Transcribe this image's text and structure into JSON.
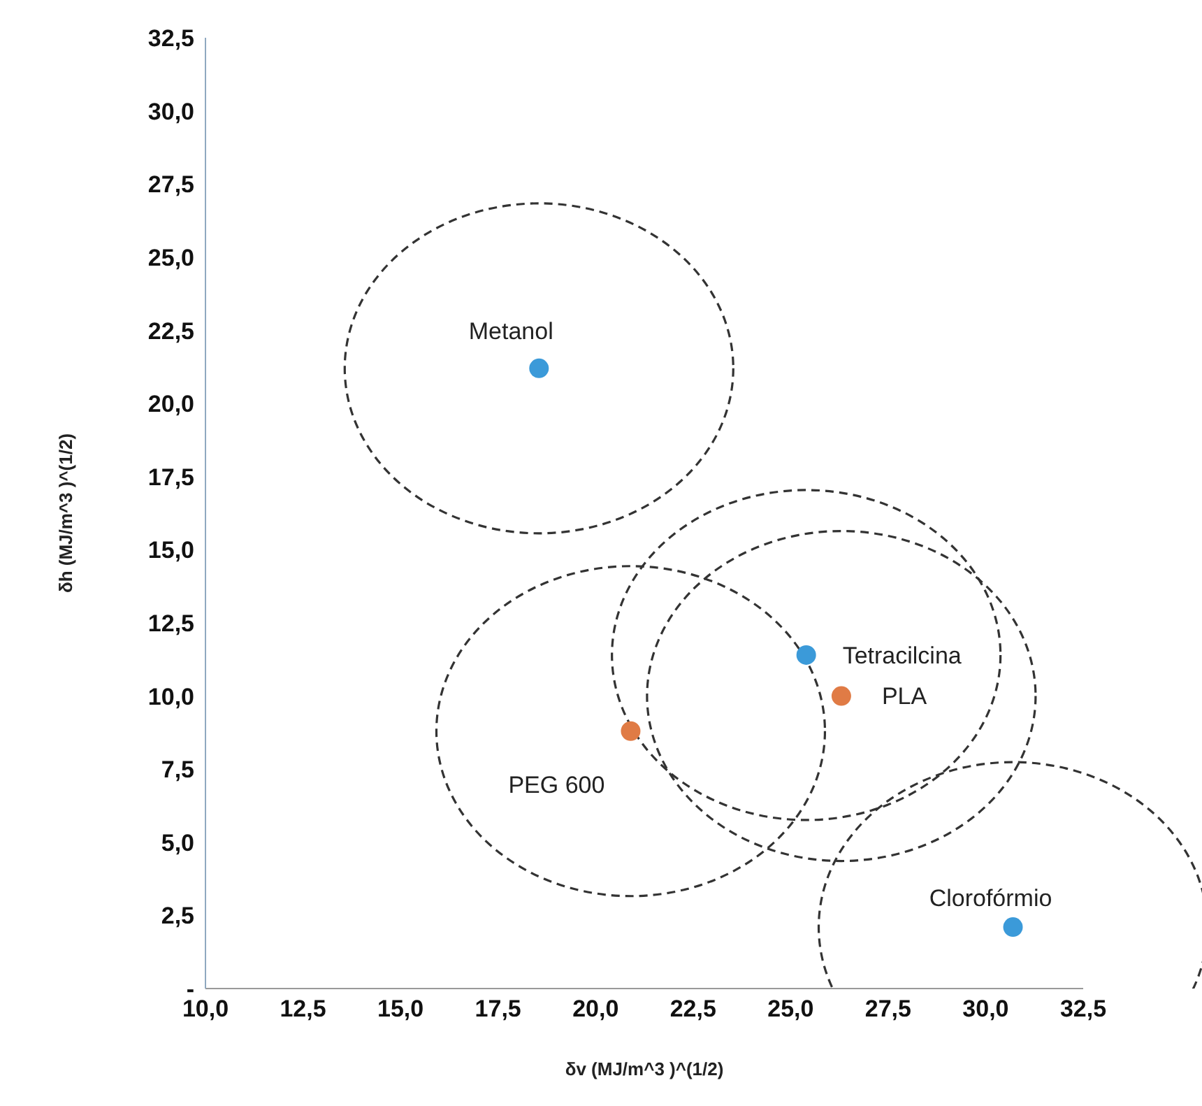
{
  "chart_data": {
    "type": "scatter",
    "xlabel": "δv (MJ/m^3 )^(1/2)",
    "ylabel": "δh (MJ/m^3 )^(1/2)",
    "xlim": [
      10,
      32.5
    ],
    "ylim": [
      0,
      32.5
    ],
    "xticks": [
      {
        "value": 10,
        "label": "10,0"
      },
      {
        "value": 12.5,
        "label": "12,5"
      },
      {
        "value": 15,
        "label": "15,0"
      },
      {
        "value": 17.5,
        "label": "17,5"
      },
      {
        "value": 20,
        "label": "20,0"
      },
      {
        "value": 22.5,
        "label": "22,5"
      },
      {
        "value": 25,
        "label": "25,0"
      },
      {
        "value": 27.5,
        "label": "27,5"
      },
      {
        "value": 30,
        "label": "30,0"
      },
      {
        "value": 32.5,
        "label": "32,5"
      }
    ],
    "yticks": [
      {
        "value": 0,
        "label": "-"
      },
      {
        "value": 2.5,
        "label": "2,5"
      },
      {
        "value": 5,
        "label": "5,0"
      },
      {
        "value": 7.5,
        "label": "7,5"
      },
      {
        "value": 10,
        "label": "10,0"
      },
      {
        "value": 12.5,
        "label": "12,5"
      },
      {
        "value": 15,
        "label": "15,0"
      },
      {
        "value": 17.5,
        "label": "17,5"
      },
      {
        "value": 20,
        "label": "20,0"
      },
      {
        "value": 22.5,
        "label": "22,5"
      },
      {
        "value": 25,
        "label": "25,0"
      },
      {
        "value": 27.5,
        "label": "27,5"
      },
      {
        "value": 30,
        "label": "30,0"
      },
      {
        "value": 32.5,
        "label": "32,5"
      }
    ],
    "marker": "circle",
    "series": [
      {
        "type": "scatter",
        "color": "#3b9ad9",
        "x": [
          18.55,
          25.4,
          30.7
        ],
        "values": [
          21.2,
          11.4,
          2.1
        ]
      },
      {
        "type": "scatter",
        "color": "#e07b45",
        "x": [
          26.3,
          20.9
        ],
        "values": [
          10.0,
          8.8
        ]
      }
    ],
    "annotations": [
      {
        "text": "Metanol",
        "x": 18.55,
        "y": 21.2
      },
      {
        "text": "Tetracilcina",
        "x": 25.4,
        "y": 11.4
      },
      {
        "text": "PLA",
        "x": 26.3,
        "y": 10.0
      },
      {
        "text": "PEG 600",
        "x": 20.9,
        "y": 8.8
      },
      {
        "text": "Clorofórmio",
        "x": 30.7,
        "y": 2.1
      }
    ]
  }
}
